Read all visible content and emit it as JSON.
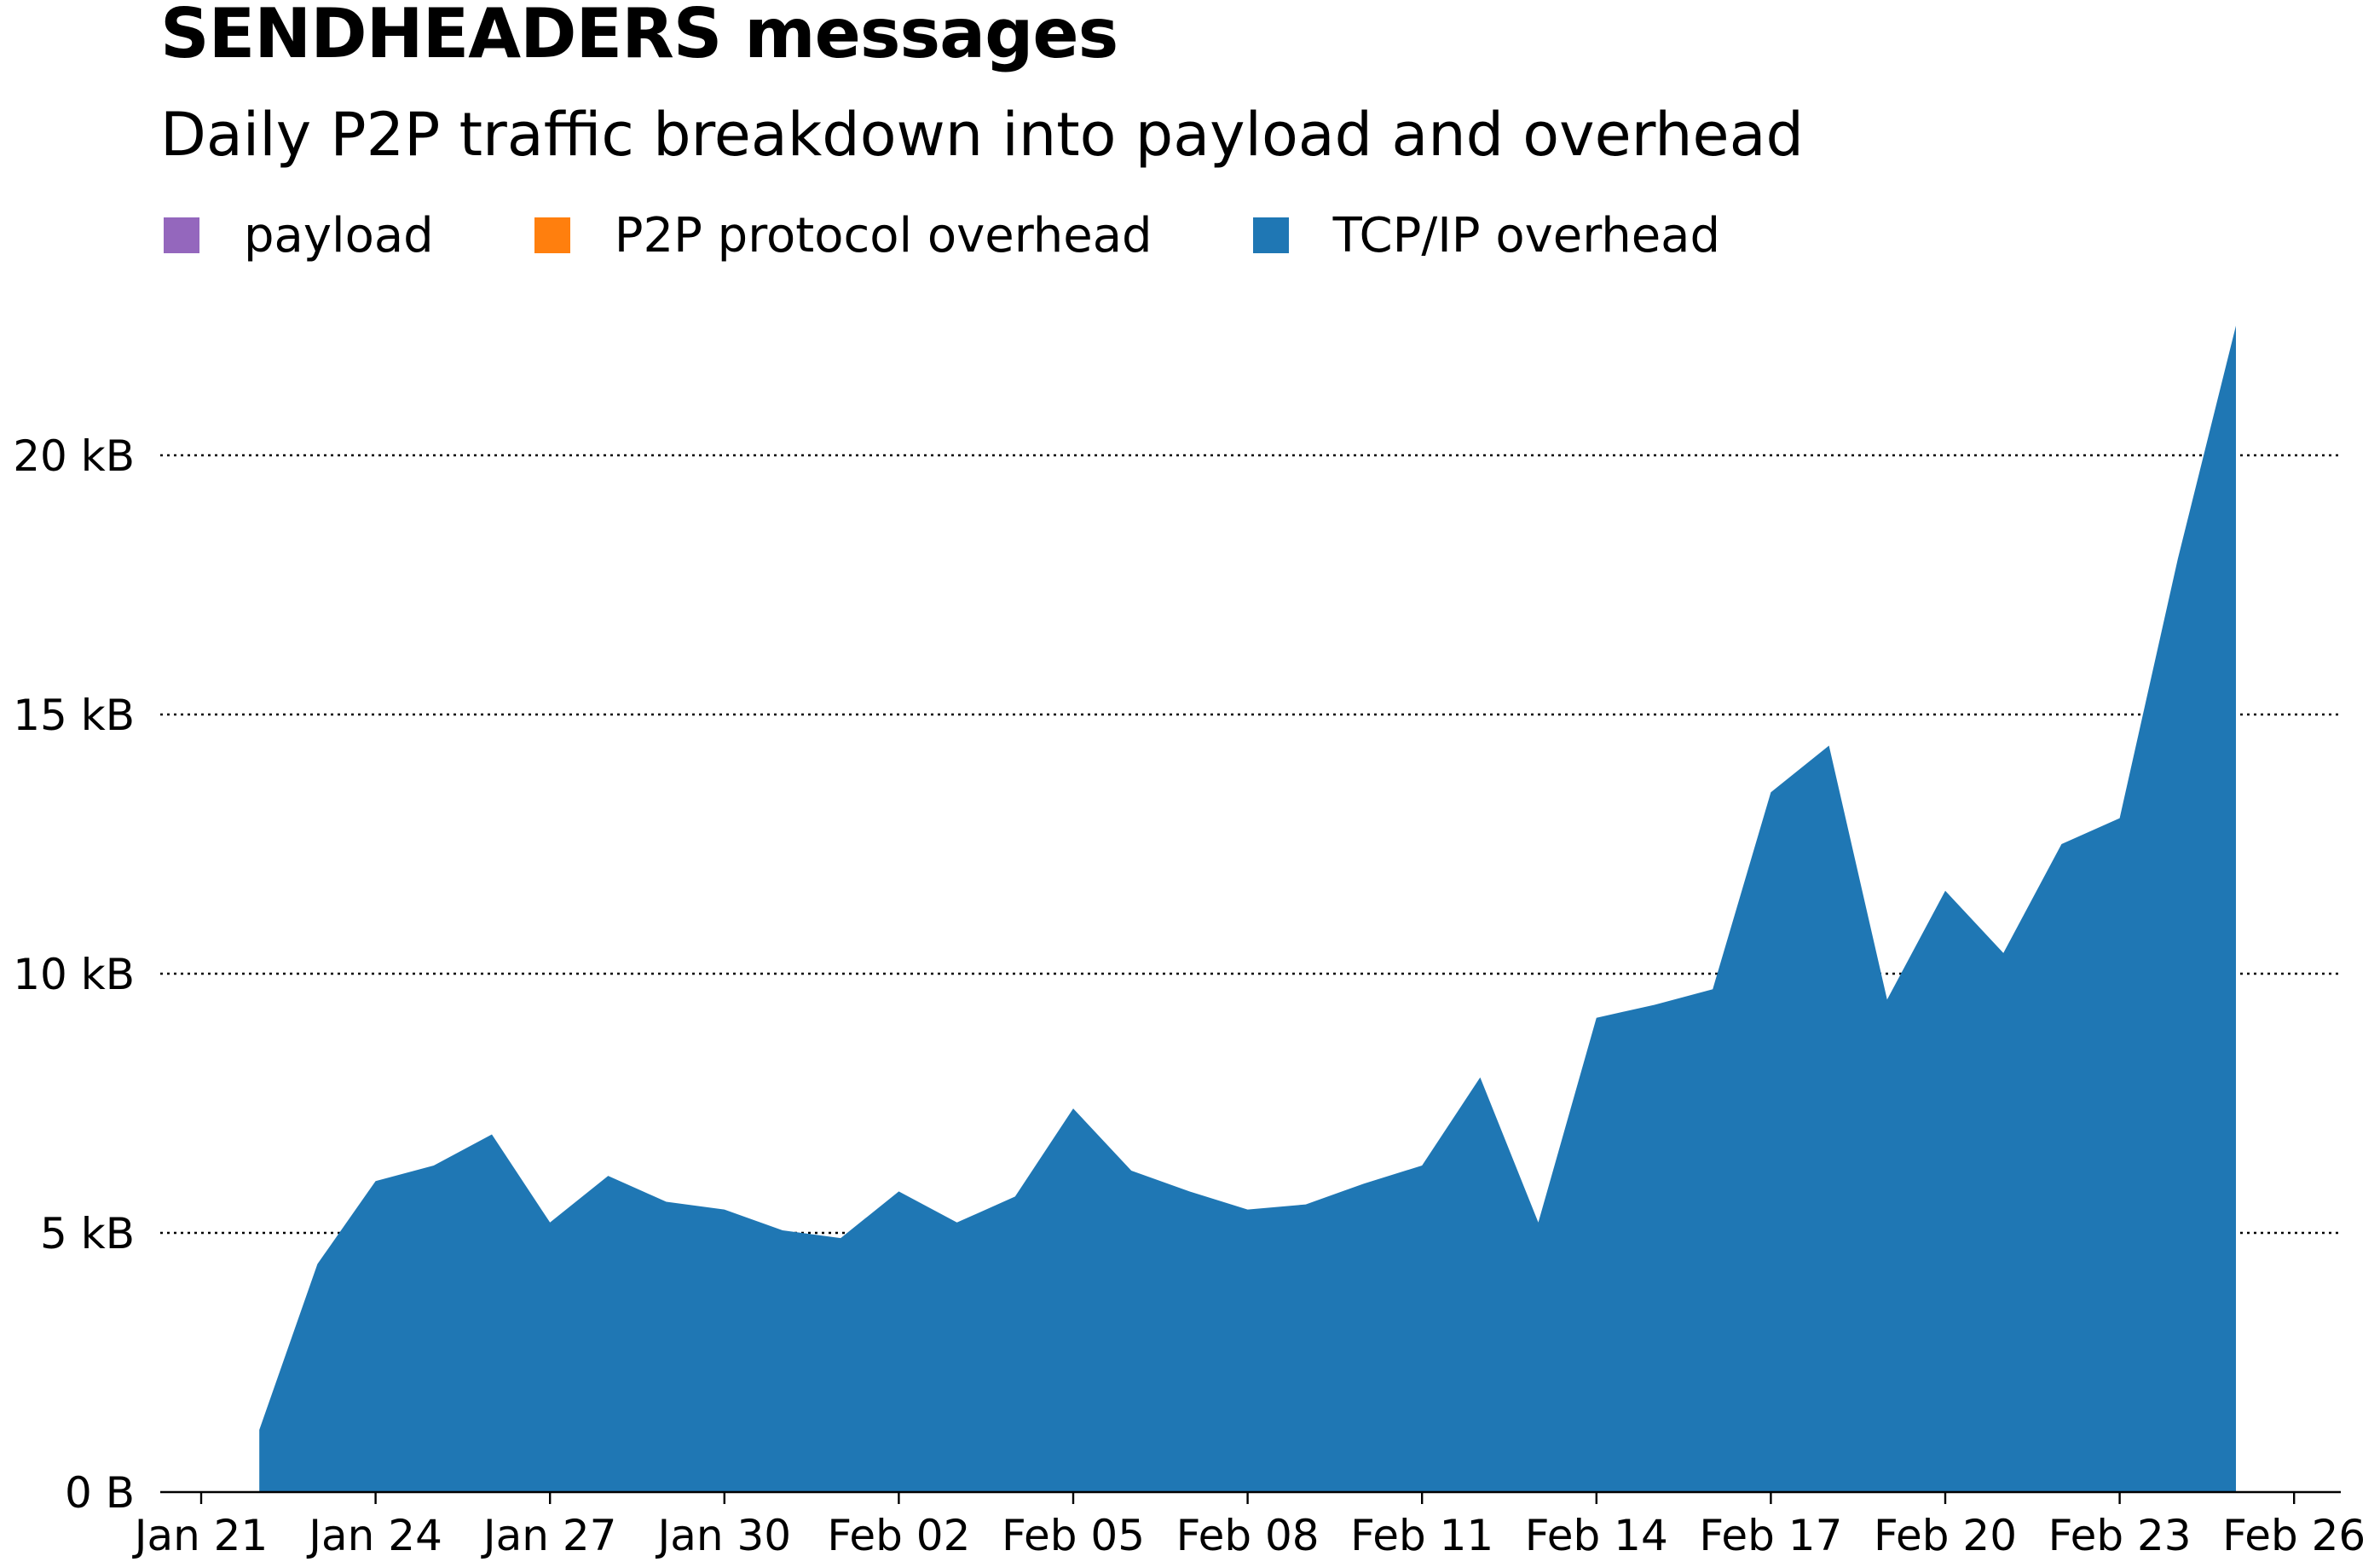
{
  "chart_data": {
    "type": "area",
    "title": "SENDHEADERS messages",
    "subtitle": "Daily P2P traffic breakdown into payload and overhead",
    "xlabel": "",
    "ylabel": "",
    "legend_placement": "top-left",
    "grid": "horizontal dotted",
    "x_ticks": [
      "Jan 21",
      "Jan 24",
      "Jan 27",
      "Jan 30",
      "Feb 02",
      "Feb 05",
      "Feb 08",
      "Feb 11",
      "Feb 14",
      "Feb 17",
      "Feb 20",
      "Feb 23",
      "Feb 26"
    ],
    "y_ticks": [
      "0 B",
      "5 kB",
      "10 kB",
      "15 kB",
      "20 kB"
    ],
    "y_tick_values_kB": [
      0,
      5,
      10,
      15,
      20
    ],
    "ylim_kB": [
      0,
      22.5
    ],
    "x_range_days_from_jan21": [
      -0.7,
      36.4
    ],
    "x": [
      "Jan 22",
      "Jan 23",
      "Jan 24",
      "Jan 25",
      "Jan 26",
      "Jan 27",
      "Jan 28",
      "Jan 29",
      "Jan 30",
      "Jan 31",
      "Feb 01",
      "Feb 02",
      "Feb 03",
      "Feb 04",
      "Feb 05",
      "Feb 06",
      "Feb 07",
      "Feb 08",
      "Feb 09",
      "Feb 10",
      "Feb 11",
      "Feb 12",
      "Feb 13",
      "Feb 14",
      "Feb 15",
      "Feb 16",
      "Feb 17",
      "Feb 18",
      "Feb 19",
      "Feb 20",
      "Feb 21",
      "Feb 22",
      "Feb 23",
      "Feb 24",
      "Feb 25"
    ],
    "series": [
      {
        "name": "payload",
        "color": "#9467bd",
        "values": [
          0,
          0,
          0,
          0,
          0,
          0,
          0,
          0,
          0,
          0,
          0,
          0,
          0,
          0,
          0,
          0,
          0,
          0,
          0,
          0,
          0,
          0,
          0,
          0,
          0,
          0,
          0,
          0,
          0,
          0,
          0,
          0,
          0,
          0,
          0
        ]
      },
      {
        "name": "P2P protocol overhead",
        "color": "#ff7f0e",
        "values": [
          0,
          0,
          0,
          0,
          0,
          0,
          0,
          0,
          0,
          0,
          0,
          0,
          0,
          0,
          0,
          0,
          0,
          0,
          0,
          0,
          0,
          0,
          0,
          0,
          0,
          0,
          0,
          0,
          0,
          0,
          0,
          0,
          0,
          0,
          0
        ]
      },
      {
        "name": "TCP/IP overhead",
        "color": "#1f77b4",
        "values": [
          1.2,
          4.4,
          6.0,
          6.3,
          6.9,
          5.2,
          6.1,
          5.6,
          5.45,
          5.05,
          4.9,
          5.8,
          5.2,
          5.7,
          7.4,
          6.2,
          5.8,
          5.45,
          5.55,
          5.95,
          6.3,
          8.0,
          5.2,
          9.15,
          9.4,
          9.7,
          13.5,
          14.4,
          9.5,
          11.6,
          10.4,
          12.5,
          13.0,
          18.0,
          22.5
        ]
      }
    ]
  }
}
